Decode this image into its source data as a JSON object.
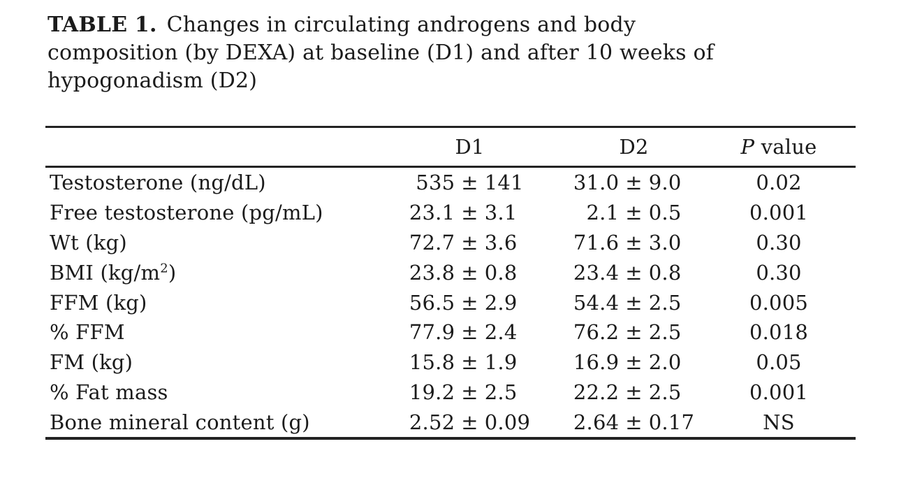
{
  "title": {
    "label": "TABLE 1.",
    "line1_rest": "Changes in circulating androgens and body",
    "line2": "composition (by DEXA) at baseline (D1) and after 10 weeks of",
    "line3": "hypogonadism (D2)"
  },
  "table": {
    "pm_symbol": "±",
    "columns": {
      "label": "",
      "d1": "D1",
      "d2": "D2",
      "p_italic": "P",
      "p_rest": " value"
    },
    "rows": [
      {
        "label": "Testosterone (ng/dL)",
        "label_sup": "",
        "label_after": "",
        "d1_mean": "535",
        "d1_sd": "141",
        "d2_mean": "31.0",
        "d2_sd": "9.0",
        "p": "0.02"
      },
      {
        "label": "Free testosterone (pg/mL)",
        "label_sup": "",
        "label_after": "",
        "d1_mean": "23.1",
        "d1_sd": "3.1",
        "d2_mean": "2.1",
        "d2_sd": "0.5",
        "p": "0.001"
      },
      {
        "label": "Wt (kg)",
        "label_sup": "",
        "label_after": "",
        "d1_mean": "72.7",
        "d1_sd": "3.6",
        "d2_mean": "71.6",
        "d2_sd": "3.0",
        "p": "0.30"
      },
      {
        "label": "BMI (kg/m",
        "label_sup": "2",
        "label_after": ")",
        "d1_mean": "23.8",
        "d1_sd": "0.8",
        "d2_mean": "23.4",
        "d2_sd": "0.8",
        "p": "0.30"
      },
      {
        "label": "FFM (kg)",
        "label_sup": "",
        "label_after": "",
        "d1_mean": "56.5",
        "d1_sd": "2.9",
        "d2_mean": "54.4",
        "d2_sd": "2.5",
        "p": "0.005"
      },
      {
        "label": "% FFM",
        "label_sup": "",
        "label_after": "",
        "d1_mean": "77.9",
        "d1_sd": "2.4",
        "d2_mean": "76.2",
        "d2_sd": "2.5",
        "p": "0.018"
      },
      {
        "label": "FM (kg)",
        "label_sup": "",
        "label_after": "",
        "d1_mean": "15.8",
        "d1_sd": "1.9",
        "d2_mean": "16.9",
        "d2_sd": "2.0",
        "p": "0.05"
      },
      {
        "label": "% Fat mass",
        "label_sup": "",
        "label_after": "",
        "d1_mean": "19.2",
        "d1_sd": "2.5",
        "d2_mean": "22.2",
        "d2_sd": "2.5",
        "p": "0.001"
      },
      {
        "label": "Bone mineral content (g)",
        "label_sup": "",
        "label_after": "",
        "d1_mean": "2.52",
        "d1_sd": "0.09",
        "d2_mean": "2.64",
        "d2_sd": "0.17",
        "p": "NS"
      }
    ]
  }
}
